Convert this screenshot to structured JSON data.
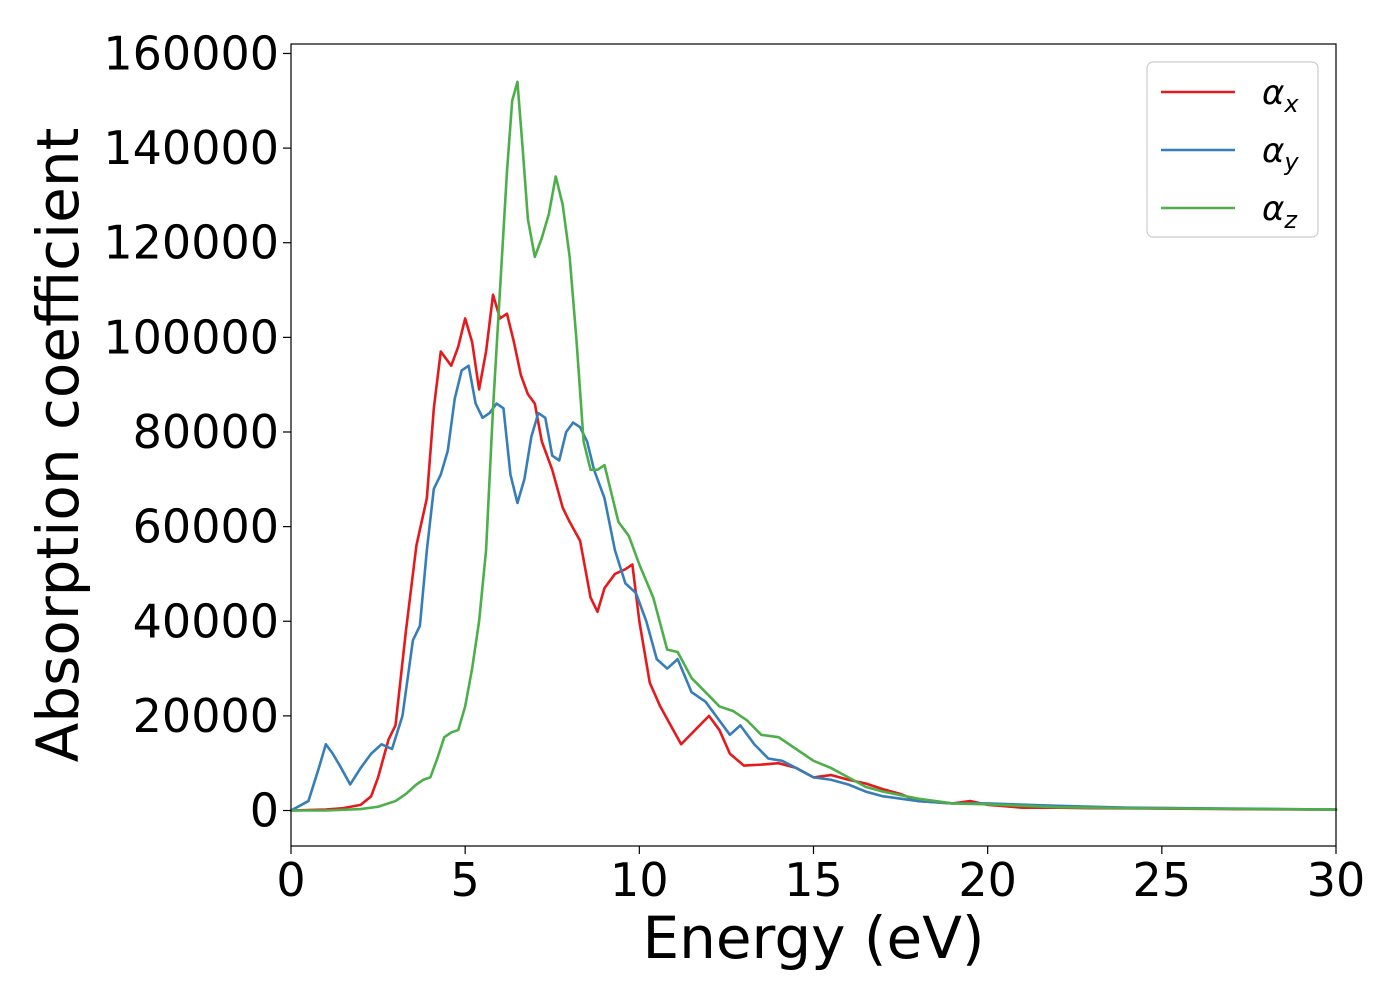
{
  "chart_data": {
    "type": "line",
    "xlabel": "Energy (eV)",
    "ylabel": "Absorption coefficient",
    "xlim": [
      0,
      30
    ],
    "ylim": [
      -7500,
      162000
    ],
    "xticks": [
      0,
      5,
      10,
      15,
      20,
      25,
      30
    ],
    "yticks": [
      0,
      20000,
      40000,
      60000,
      80000,
      100000,
      120000,
      140000,
      160000
    ],
    "grid": false,
    "legend_position": "top-right",
    "series": [
      {
        "name": "α_x",
        "legend_symbol": "α",
        "legend_subscript": "x",
        "color": "#e41a1c",
        "x": [
          0,
          1,
          1.5,
          2,
          2.3,
          2.5,
          2.8,
          3.0,
          3.3,
          3.6,
          3.9,
          4.1,
          4.3,
          4.6,
          4.8,
          5.0,
          5.2,
          5.4,
          5.6,
          5.8,
          6.0,
          6.2,
          6.4,
          6.6,
          6.8,
          7.0,
          7.2,
          7.5,
          7.8,
          8.0,
          8.3,
          8.6,
          8.8,
          9.0,
          9.3,
          9.6,
          9.8,
          10.0,
          10.3,
          10.6,
          10.9,
          11.2,
          11.6,
          12.0,
          12.3,
          12.6,
          13.0,
          13.5,
          14.0,
          14.5,
          15.0,
          15.5,
          16.0,
          16.5,
          17.0,
          17.5,
          18.0,
          19.0,
          19.5,
          20.0,
          21.0,
          22.0,
          23.0,
          25.0,
          27.0,
          30.0
        ],
        "y": [
          0,
          200,
          500,
          1200,
          3000,
          7000,
          15000,
          18000,
          38000,
          56000,
          66000,
          85000,
          97000,
          94000,
          98000,
          104000,
          99000,
          89000,
          97000,
          109000,
          104000,
          105000,
          99000,
          92000,
          88000,
          86000,
          78000,
          72000,
          64000,
          61000,
          57000,
          45000,
          42000,
          47000,
          50000,
          51000,
          52000,
          40000,
          27000,
          22000,
          18000,
          14000,
          17000,
          20000,
          17000,
          12000,
          9500,
          9700,
          10000,
          9000,
          7000,
          7500,
          6500,
          5700,
          4500,
          3500,
          2000,
          1500,
          2000,
          1200,
          600,
          600,
          500,
          400,
          300,
          200
        ]
      },
      {
        "name": "α_y",
        "legend_symbol": "α",
        "legend_subscript": "y",
        "color": "#377eb8",
        "x": [
          0,
          0.5,
          0.8,
          1.0,
          1.2,
          1.4,
          1.7,
          2.0,
          2.3,
          2.6,
          2.9,
          3.2,
          3.5,
          3.7,
          3.9,
          4.1,
          4.3,
          4.5,
          4.7,
          4.9,
          5.1,
          5.3,
          5.5,
          5.7,
          5.9,
          6.1,
          6.3,
          6.5,
          6.7,
          6.9,
          7.1,
          7.3,
          7.5,
          7.7,
          7.9,
          8.1,
          8.3,
          8.5,
          8.7,
          9.0,
          9.3,
          9.6,
          9.9,
          10.2,
          10.5,
          10.8,
          11.1,
          11.5,
          11.9,
          12.3,
          12.6,
          12.9,
          13.3,
          13.7,
          14.1,
          14.5,
          15.0,
          15.5,
          16.0,
          16.5,
          17.0,
          18.0,
          19.0,
          20.0,
          22.0,
          24.0,
          30.0
        ],
        "y": [
          0,
          2000,
          9000,
          14000,
          12000,
          9500,
          5500,
          9000,
          12000,
          14000,
          13000,
          20000,
          36000,
          39000,
          55000,
          68000,
          71000,
          76000,
          87000,
          93000,
          94000,
          86000,
          83000,
          84000,
          86000,
          85000,
          71000,
          65000,
          70000,
          79000,
          84000,
          83000,
          75000,
          74000,
          80000,
          82000,
          81000,
          78000,
          72000,
          66000,
          55000,
          48000,
          46000,
          40000,
          32000,
          30000,
          32000,
          25000,
          23000,
          19000,
          16000,
          18000,
          14000,
          11000,
          10500,
          9000,
          7000,
          6500,
          5500,
          4000,
          3000,
          2000,
          1500,
          1500,
          1000,
          600,
          200
        ]
      },
      {
        "name": "α_z",
        "legend_symbol": "α",
        "legend_subscript": "z",
        "color": "#4daf4a",
        "x": [
          0,
          1,
          2,
          2.5,
          3.0,
          3.3,
          3.6,
          3.8,
          4.0,
          4.2,
          4.4,
          4.6,
          4.8,
          5.0,
          5.2,
          5.4,
          5.6,
          5.8,
          6.0,
          6.2,
          6.35,
          6.5,
          6.65,
          6.8,
          7.0,
          7.2,
          7.4,
          7.6,
          7.8,
          8.0,
          8.2,
          8.4,
          8.6,
          8.8,
          9.0,
          9.2,
          9.4,
          9.7,
          10.0,
          10.4,
          10.8,
          11.1,
          11.5,
          11.9,
          12.3,
          12.7,
          13.1,
          13.5,
          14.0,
          14.5,
          15.0,
          15.5,
          16.0,
          16.5,
          17.0,
          18.0,
          19.0,
          20.0,
          22.0,
          24.0,
          30.0
        ],
        "y": [
          0,
          0,
          300,
          800,
          2000,
          3500,
          5500,
          6500,
          7000,
          11000,
          15500,
          16500,
          17000,
          22000,
          30000,
          40000,
          55000,
          85000,
          110000,
          135000,
          150000,
          154000,
          140000,
          125000,
          117000,
          121000,
          126000,
          134000,
          128000,
          117000,
          99000,
          78000,
          72000,
          72000,
          73000,
          67000,
          61000,
          58000,
          52000,
          45000,
          34000,
          33500,
          28000,
          25000,
          22000,
          21000,
          19000,
          16000,
          15500,
          13000,
          10500,
          9000,
          7000,
          5000,
          4000,
          2500,
          1500,
          1300,
          700,
          500,
          200
        ]
      }
    ]
  }
}
